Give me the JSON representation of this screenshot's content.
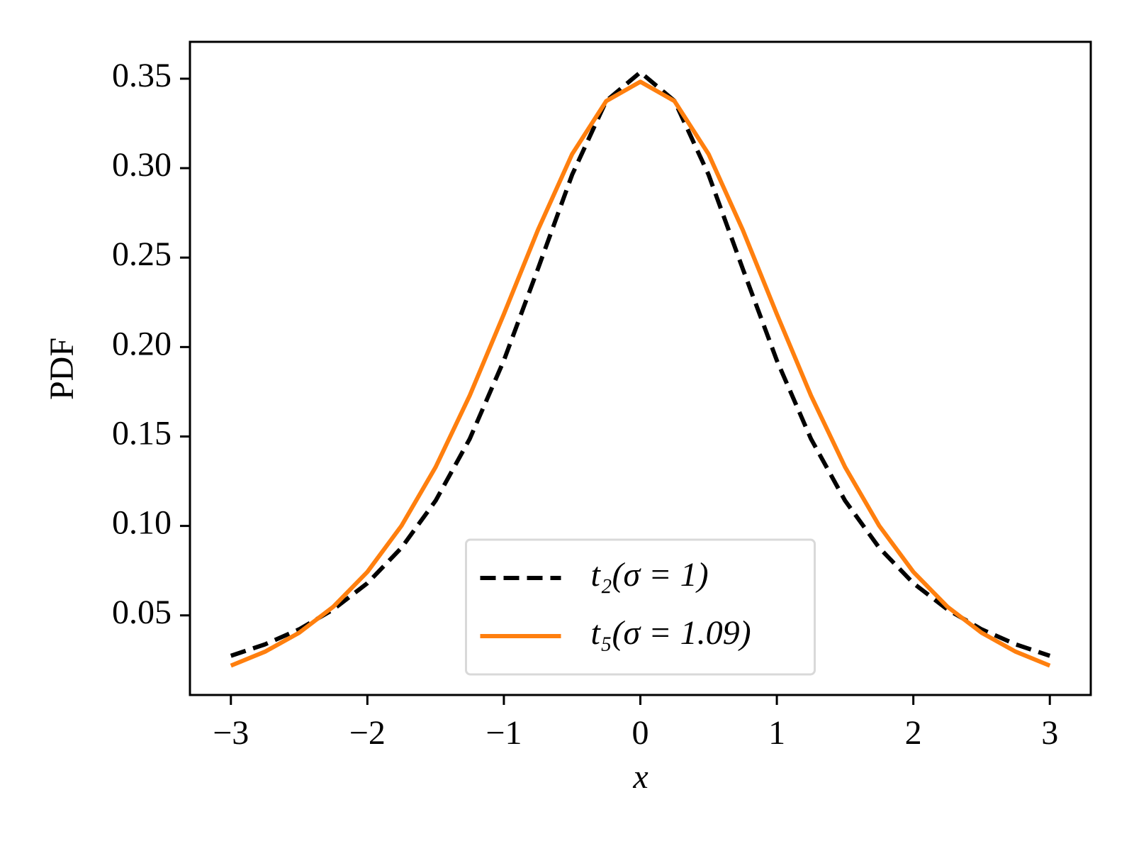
{
  "chart_data": {
    "type": "line",
    "xlabel": "x",
    "ylabel": "PDF",
    "x": [
      -3,
      -2.75,
      -2.5,
      -2.25,
      -2,
      -1.75,
      -1.5,
      -1.25,
      -1,
      -0.75,
      -0.5,
      -0.25,
      0,
      0.25,
      0.5,
      0.75,
      1,
      1.25,
      1.5,
      1.75,
      2,
      2.25,
      2.5,
      2.75,
      3
    ],
    "series": [
      {
        "name": "t₂(σ = 1)",
        "color": "#000000",
        "dashed": true,
        "values": [
          0.0274,
          0.0338,
          0.0422,
          0.0533,
          0.068,
          0.0878,
          0.1141,
          0.1487,
          0.1925,
          0.2438,
          0.2963,
          0.3376,
          0.3536,
          0.3376,
          0.2963,
          0.2438,
          0.1925,
          0.1487,
          0.1141,
          0.0878,
          0.068,
          0.0533,
          0.0422,
          0.0338,
          0.0274
        ]
      },
      {
        "name": "t₅(σ = 1.09)",
        "color": "#ff7f0e",
        "dashed": false,
        "values": [
          0.0219,
          0.0297,
          0.0403,
          0.0548,
          0.0743,
          0.1001,
          0.1329,
          0.1729,
          0.2184,
          0.2655,
          0.3078,
          0.3375,
          0.3483,
          0.3375,
          0.3078,
          0.2655,
          0.2184,
          0.1729,
          0.1329,
          0.1001,
          0.0743,
          0.0548,
          0.0403,
          0.0297,
          0.0219
        ]
      }
    ],
    "xlim": [
      -3.3,
      3.3
    ],
    "xticks": [
      {
        "value": -3,
        "label": "−3"
      },
      {
        "value": -2,
        "label": "−2"
      },
      {
        "value": -1,
        "label": "−1"
      },
      0,
      1,
      2,
      3
    ],
    "ylim": [
      0.0055,
      0.3706
    ],
    "yticks": [
      0.05,
      {
        "value": 0.1,
        "label": "0.10"
      },
      0.15,
      {
        "value": 0.2,
        "label": "0.20"
      },
      0.25,
      {
        "value": 0.3,
        "label": "0.30"
      },
      0.35
    ],
    "grid": false,
    "legend": "lower center"
  }
}
